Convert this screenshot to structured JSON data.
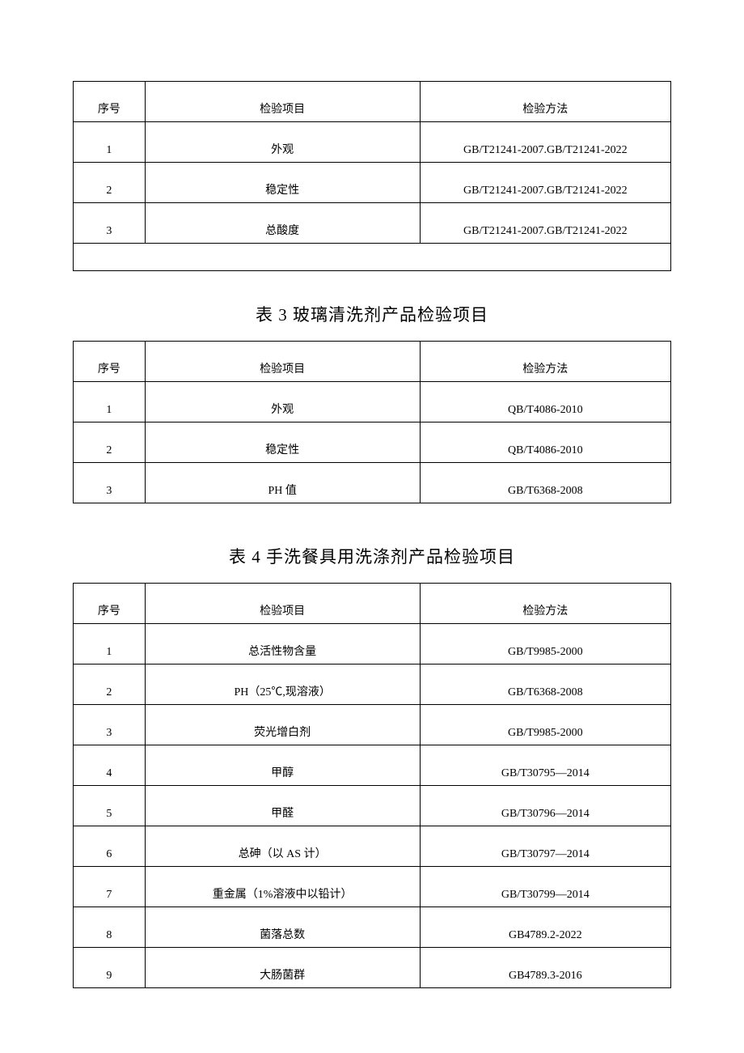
{
  "table1": {
    "columns": [
      "序号",
      "检验项目",
      "检验方法"
    ],
    "rows": [
      [
        "1",
        "外观",
        "GB/T21241-2007.GB/T21241-2022"
      ],
      [
        "2",
        "稳定性",
        "GB/T21241-2007.GB/T21241-2022"
      ],
      [
        "3",
        "总酸度",
        "GB/T21241-2007.GB/T21241-2022"
      ]
    ],
    "col_widths": [
      "12%",
      "46%",
      "42%"
    ],
    "border_color": "#000000",
    "font_size": 14,
    "text_color": "#000000",
    "has_empty_footer_row": true
  },
  "table3": {
    "title": "表 3    玻璃清洗剂产品检验项目",
    "title_fontsize": 21,
    "columns": [
      "序号",
      "检验项目",
      "检验方法"
    ],
    "rows": [
      [
        "1",
        "外观",
        "QB/T4086-2010"
      ],
      [
        "2",
        "稳定性",
        "QB/T4086-2010"
      ],
      [
        "3",
        "PH 值",
        "GB/T6368-2008"
      ]
    ],
    "col_widths": [
      "12%",
      "46%",
      "42%"
    ],
    "border_color": "#000000",
    "font_size": 14,
    "text_color": "#000000"
  },
  "table4": {
    "title": "表 4 手洗餐具用洗涤剂产品检验项目",
    "title_fontsize": 21,
    "columns": [
      "序号",
      "检验项目",
      "检验方法"
    ],
    "rows": [
      [
        "1",
        "总活性物含量",
        "GB/T9985-2000"
      ],
      [
        "2",
        "PH（25℃,现溶液）",
        "GB/T6368-2008"
      ],
      [
        "3",
        "荧光增白剂",
        "GB/T9985-2000"
      ],
      [
        "4",
        "甲醇",
        "GB/T30795—2014"
      ],
      [
        "5",
        "甲醛",
        "GB/T30796—2014"
      ],
      [
        "6",
        "总砷（以 AS 计）",
        "GB/T30797—2014"
      ],
      [
        "7",
        "重金属（1%溶液中以铅计）",
        "GB/T30799—2014"
      ],
      [
        "8",
        "菌落总数",
        "GB4789.2-2022"
      ],
      [
        "9",
        "大肠菌群",
        "GB4789.3-2016"
      ]
    ],
    "col_widths": [
      "12%",
      "46%",
      "42%"
    ],
    "border_color": "#000000",
    "font_size": 14,
    "text_color": "#000000"
  }
}
